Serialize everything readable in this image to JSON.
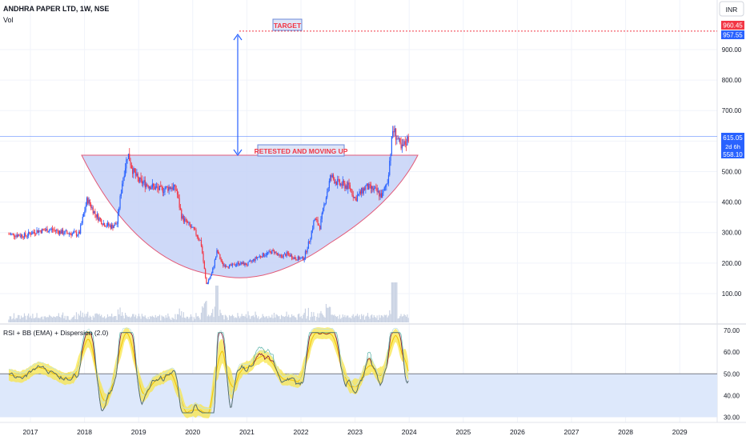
{
  "header": {
    "symbol_title": "ANDHRA PAPER LTD, 1W, NSE",
    "volume_label": "Vol",
    "currency_button": "INR"
  },
  "indicator": {
    "title": "RSI + BB (EMA) + Dispersion (2.0)",
    "levels": [
      70,
      60,
      50,
      40,
      30
    ],
    "threshold": 50,
    "tick_labels": [
      "70.00",
      "60.00",
      "50.00",
      "40.00",
      "30.00"
    ]
  },
  "annotations": {
    "target_label": "TARGET",
    "retest_label": "RETESTED AND MOVING UP"
  },
  "price_badges": {
    "target_high": "960.45",
    "target_low": "957.55",
    "current_price": "615.05",
    "countdown": "2d 6h",
    "prior_level": "558.10"
  },
  "colors": {
    "up": "#2962ff",
    "down": "#f23645",
    "cup_fill": "#c5d2f7",
    "cup_stroke": "#e35a78",
    "rsi_zone": "#dde8fb",
    "band_fill": "#f8e64a",
    "volume": "#c9d2e3",
    "rsi_dark": "#8a2040",
    "rsi_teal": "#2a9d8f",
    "bb_band": "#f3c400",
    "badge_red": "#f23645",
    "badge_blue": "#2962ff"
  },
  "chart_data": {
    "type": "candlestick",
    "x_ticks": [
      "2017",
      "2018",
      "2019",
      "2020",
      "2021",
      "2022",
      "2023",
      "2024",
      "2025",
      "2026",
      "2027",
      "2028",
      "2029"
    ],
    "y_ticks": [
      100,
      200,
      300,
      400,
      500,
      600,
      700,
      800,
      900
    ],
    "y_tick_labels": [
      "100.00",
      "200.00",
      "300.00",
      "400.00",
      "500.00",
      "600.00",
      "700.00",
      "800.00",
      "900.00"
    ],
    "xlim": [
      2016.6,
      2029.75
    ],
    "ylim": [
      55,
      1050
    ],
    "price_path": [
      [
        2016.6,
        295
      ],
      [
        2016.9,
        290
      ],
      [
        2017.1,
        305
      ],
      [
        2017.4,
        310
      ],
      [
        2017.6,
        300
      ],
      [
        2017.9,
        295
      ],
      [
        2018.05,
        410
      ],
      [
        2018.2,
        360
      ],
      [
        2018.35,
        330
      ],
      [
        2018.5,
        320
      ],
      [
        2018.6,
        330
      ],
      [
        2018.7,
        470
      ],
      [
        2018.8,
        560
      ],
      [
        2018.9,
        500
      ],
      [
        2019.0,
        470
      ],
      [
        2019.2,
        455
      ],
      [
        2019.4,
        440
      ],
      [
        2019.6,
        450
      ],
      [
        2019.7,
        440
      ],
      [
        2019.75,
        390
      ],
      [
        2019.8,
        350
      ],
      [
        2019.9,
        330
      ],
      [
        2020.05,
        300
      ],
      [
        2020.15,
        270
      ],
      [
        2020.25,
        130
      ],
      [
        2020.35,
        165
      ],
      [
        2020.45,
        240
      ],
      [
        2020.55,
        195
      ],
      [
        2020.7,
        190
      ],
      [
        2020.85,
        200
      ],
      [
        2021.0,
        195
      ],
      [
        2021.2,
        220
      ],
      [
        2021.35,
        230
      ],
      [
        2021.5,
        240
      ],
      [
        2021.6,
        220
      ],
      [
        2021.75,
        230
      ],
      [
        2021.9,
        215
      ],
      [
        2022.05,
        215
      ],
      [
        2022.15,
        270
      ],
      [
        2022.25,
        345
      ],
      [
        2022.35,
        320
      ],
      [
        2022.45,
        410
      ],
      [
        2022.55,
        485
      ],
      [
        2022.7,
        460
      ],
      [
        2022.9,
        450
      ],
      [
        2023.0,
        410
      ],
      [
        2023.2,
        450
      ],
      [
        2023.35,
        440
      ],
      [
        2023.5,
        420
      ],
      [
        2023.6,
        470
      ],
      [
        2023.7,
        640
      ],
      [
        2023.78,
        610
      ],
      [
        2023.85,
        570
      ],
      [
        2023.95,
        600
      ],
      [
        2024.0,
        615
      ]
    ],
    "target_price": 960.45,
    "current_price": 615.05,
    "rsi_levels": {
      "upper": 70,
      "mid": 50,
      "lower": 30
    }
  }
}
